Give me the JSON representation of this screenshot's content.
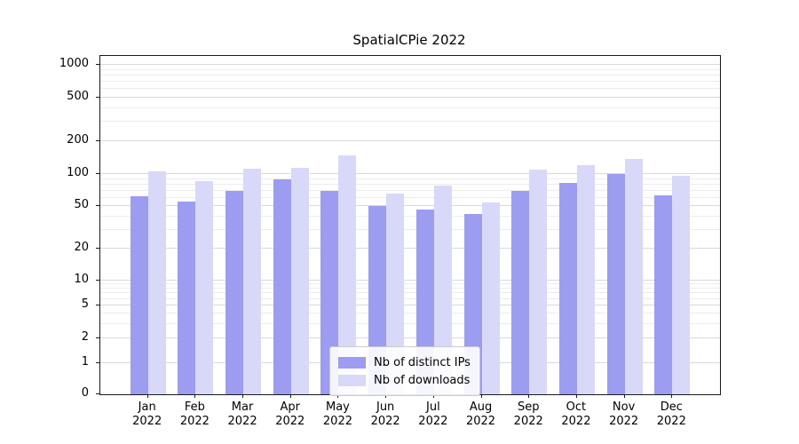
{
  "chart_data": {
    "type": "bar",
    "title": "SpatialCPie 2022",
    "categories": [
      "Jan",
      "Feb",
      "Mar",
      "Apr",
      "May",
      "Jun",
      "Jul",
      "Aug",
      "Sep",
      "Oct",
      "Nov",
      "Dec"
    ],
    "category_year": "2022",
    "series": [
      {
        "name": "Nb of distinct IPs",
        "color": "#9c9cf0",
        "values": [
          62,
          55,
          70,
          90,
          70,
          50,
          46,
          42,
          70,
          83,
          100,
          63
        ]
      },
      {
        "name": "Nb of downloads",
        "color": "#d8d8f8",
        "values": [
          105,
          86,
          112,
          115,
          148,
          66,
          78,
          54,
          110,
          120,
          138,
          96
        ]
      }
    ],
    "yscale": "symlog",
    "yticks": [
      0,
      1,
      2,
      5,
      10,
      20,
      50,
      100,
      200,
      500,
      1000
    ],
    "ylim": [
      0,
      1200
    ],
    "grid": true,
    "legend_position": "lower center inside plot"
  }
}
